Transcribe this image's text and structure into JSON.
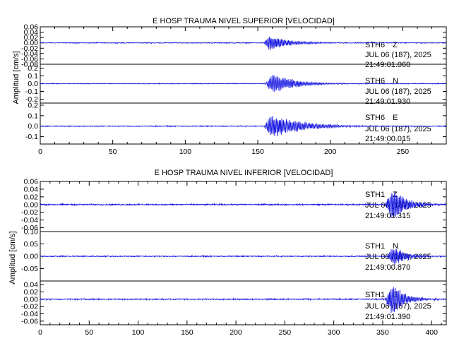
{
  "chart_data": [
    {
      "type": "line",
      "title": "E HOSP TRAUMA NIVEL SUPERIOR [VELOCIDAD]",
      "ylabel": "Amplitud [cm/s]",
      "xlim": [
        0,
        280
      ],
      "xticks": [
        "0",
        "50",
        "100",
        "150",
        "200",
        "250"
      ],
      "color": "#1010e0",
      "traces": [
        {
          "station": "STH6",
          "component": "Z",
          "date": "JUL 06 (187), 2025",
          "time": "21:49:01.060",
          "ylim": [
            -0.08,
            0.06
          ],
          "yticks": [
            "0.06",
            "0.04",
            "0.02",
            "0.00",
            "-0.02",
            "-0.04",
            "-0.06",
            "-0.08"
          ],
          "noise": 0.0012,
          "onset": 154,
          "peak_time": 158,
          "peak_amp": 0.03,
          "decay": 14
        },
        {
          "station": "STH6",
          "component": "N",
          "date": "JUL 06 (187), 2025",
          "time": "21:49:01.930",
          "ylim": [
            -0.25,
            0.25
          ],
          "yticks": [
            "0.2",
            "0.1",
            "0.0",
            "-0.1",
            "-0.2"
          ],
          "noise": 0.004,
          "onset": 155,
          "peak_time": 160,
          "peak_amp": 0.13,
          "decay": 16
        },
        {
          "station": "STH6",
          "component": "E",
          "date": "JUL 06 (187), 2025",
          "time": "21:49:00.015",
          "ylim": [
            -0.17,
            0.22
          ],
          "yticks": [
            "0.2",
            "0.1",
            "0.0",
            "-0.1"
          ],
          "noise": 0.004,
          "onset": 154,
          "peak_time": 160,
          "peak_amp": 0.12,
          "decay": 20
        }
      ]
    },
    {
      "type": "line",
      "title": "E HOSP TRAUMA NIVEL INFERIOR [VELOCIDAD]",
      "ylabel": "Amplitud [cm/s]",
      "xlim": [
        0,
        415
      ],
      "xticks": [
        "0",
        "50",
        "100",
        "150",
        "200",
        "250",
        "300",
        "350",
        "400"
      ],
      "color": "#1010e0",
      "traces": [
        {
          "station": "STH1",
          "component": "Z",
          "date": "JUL 06 (187), 2025",
          "time": "21:49:01.315",
          "ylim": [
            -0.07,
            0.06
          ],
          "yticks": [
            "0.06",
            "0.04",
            "0.02",
            "0.00",
            "-0.02",
            "-0.04",
            "-0.06"
          ],
          "noise": 0.0015,
          "onset": 352,
          "peak_time": 360,
          "peak_amp": 0.045,
          "decay": 14
        },
        {
          "station": "STH1",
          "component": "N",
          "date": "JUL 06 (187), 2025",
          "time": "21:49:00.870",
          "ylim": [
            -0.1,
            0.1
          ],
          "yticks": [
            "0.10",
            "0.05",
            "0.00",
            "-0.05"
          ],
          "noise": 0.002,
          "onset": 354,
          "peak_time": 361,
          "peak_amp": 0.045,
          "decay": 12
        },
        {
          "station": "STH1",
          "component": "E",
          "date": "JUL 06 (187), 2025",
          "time": "21:49:01.390",
          "ylim": [
            -0.07,
            0.05
          ],
          "yticks": [
            "0.04",
            "0.02",
            "0.00",
            "-0.02",
            "-0.04",
            "-0.06"
          ],
          "noise": 0.0015,
          "onset": 352,
          "peak_time": 360,
          "peak_amp": 0.05,
          "decay": 12
        }
      ]
    }
  ]
}
